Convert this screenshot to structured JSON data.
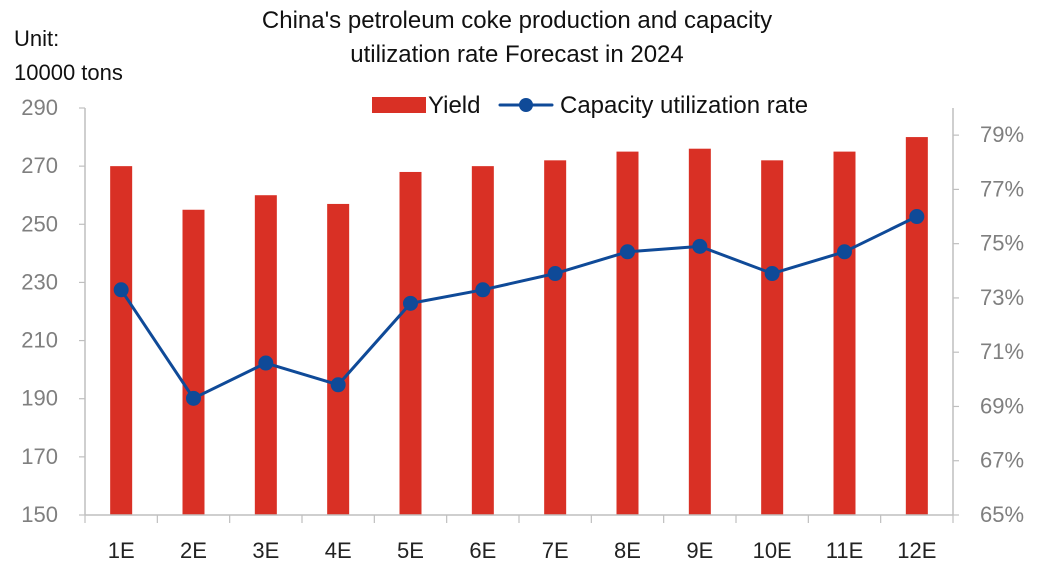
{
  "chart_data": {
    "type": "bar",
    "title_lines": [
      "China's petroleum coke production and capacity",
      "utilization rate Forecast in 2024"
    ],
    "unit_lines": [
      "Unit:",
      "10000 tons"
    ],
    "categories": [
      "1E",
      "2E",
      "3E",
      "4E",
      "5E",
      "6E",
      "7E",
      "8E",
      "9E",
      "10E",
      "11E",
      "12E"
    ],
    "series": [
      {
        "name": "Yield",
        "type": "bar",
        "axis": "left",
        "color": "#d93025",
        "values": [
          270,
          255,
          260,
          257,
          268,
          270,
          272,
          275,
          276,
          272,
          275,
          280
        ]
      },
      {
        "name": "Capacity utilization rate",
        "type": "line",
        "axis": "right",
        "color": "#0f4a98",
        "values": [
          73.3,
          69.3,
          70.6,
          69.8,
          72.8,
          73.3,
          73.9,
          74.7,
          74.9,
          73.9,
          74.7,
          76.0
        ]
      }
    ],
    "ylim_left": [
      150,
      290
    ],
    "yticks_left": [
      "150",
      "170",
      "190",
      "210",
      "230",
      "250",
      "270",
      "290"
    ],
    "ylim_right": [
      65,
      80
    ],
    "yticks_right": [
      "65%",
      "67%",
      "69%",
      "71%",
      "73%",
      "75%",
      "77%",
      "79%"
    ],
    "grid": false,
    "legend_position": "top-right"
  }
}
